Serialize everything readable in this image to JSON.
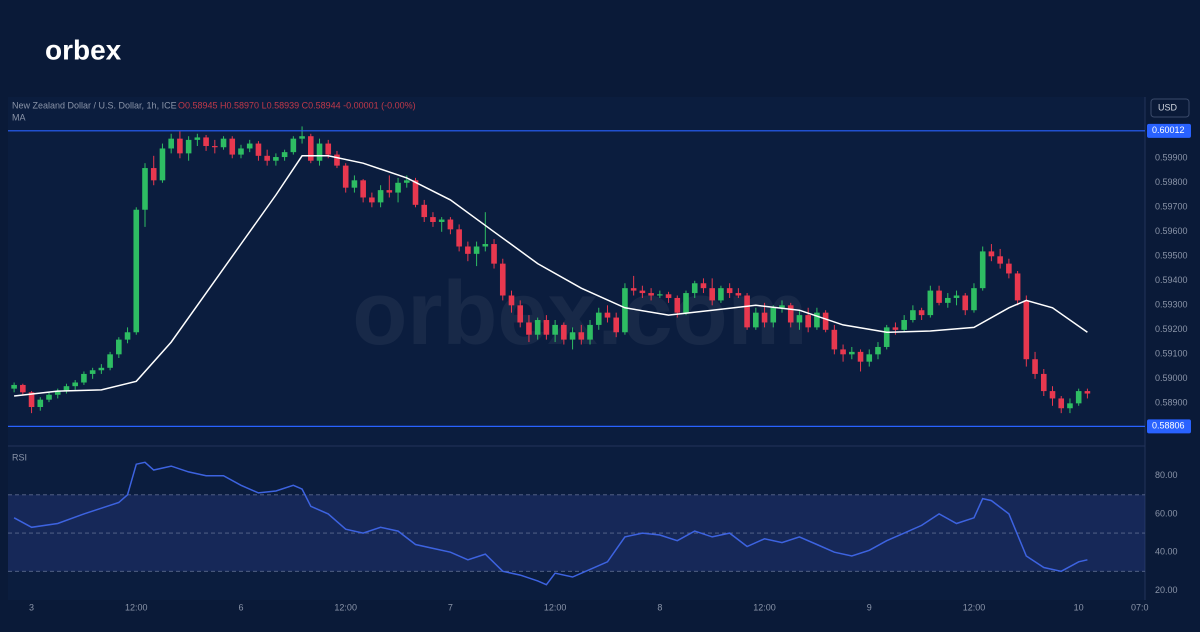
{
  "header": {
    "logo": "orbex",
    "watermark": "orbex.com"
  },
  "chart_data": [
    {
      "type": "candlestick",
      "title": "New Zealand Dollar / U.S. Dollar, 1h, ICE",
      "ohlc": "O0.58945 H0.58970 L0.58939 C0.58944 -0.00001 (-0.00%)",
      "currency": "USD",
      "up_color": "#2ebd63",
      "down_color": "#e8384f",
      "ylim": [
        0.5873,
        0.6015
      ],
      "yticks": [
        {
          "value": 0.599,
          "label": "0.59900"
        },
        {
          "value": 0.598,
          "label": "0.59800"
        },
        {
          "value": 0.597,
          "label": "0.59700"
        },
        {
          "value": 0.596,
          "label": "0.59600"
        },
        {
          "value": 0.595,
          "label": "0.59500"
        },
        {
          "value": 0.594,
          "label": "0.59400"
        },
        {
          "value": 0.593,
          "label": "0.59300"
        },
        {
          "value": 0.592,
          "label": "0.59200"
        },
        {
          "value": 0.591,
          "label": "0.59100"
        },
        {
          "value": 0.59,
          "label": "0.59000"
        },
        {
          "value": 0.589,
          "label": "0.58900"
        }
      ],
      "levels": [
        0.60012,
        0.58806
      ],
      "level_color": "#2962ff",
      "xlim": [
        -0.7,
        129.6
      ],
      "xticks": [
        {
          "value": 2,
          "label": "3"
        },
        {
          "value": 14,
          "label": "12:00"
        },
        {
          "value": 26,
          "label": "6"
        },
        {
          "value": 38,
          "label": "12:00"
        },
        {
          "value": 50,
          "label": "7"
        },
        {
          "value": 62,
          "label": "12:00"
        },
        {
          "value": 74,
          "label": "8"
        },
        {
          "value": 86,
          "label": "12:00"
        },
        {
          "value": 98,
          "label": "9"
        },
        {
          "value": 110,
          "label": "12:00"
        },
        {
          "value": 122,
          "label": "10"
        },
        {
          "value": 129,
          "label": "07:0"
        }
      ],
      "candles": [
        [
          0.5896,
          0.58985,
          0.58945,
          0.58975
        ],
        [
          0.58975,
          0.5898,
          0.58935,
          0.58945
        ],
        [
          0.58945,
          0.5895,
          0.5886,
          0.58885
        ],
        [
          0.58885,
          0.58925,
          0.5887,
          0.58915
        ],
        [
          0.58915,
          0.58945,
          0.58905,
          0.58935
        ],
        [
          0.58935,
          0.5896,
          0.5892,
          0.5895
        ],
        [
          0.5895,
          0.5898,
          0.5894,
          0.5897
        ],
        [
          0.5897,
          0.58995,
          0.58955,
          0.58985
        ],
        [
          0.58985,
          0.5903,
          0.58975,
          0.5902
        ],
        [
          0.5902,
          0.59045,
          0.59,
          0.59035
        ],
        [
          0.59035,
          0.5906,
          0.5902,
          0.59045
        ],
        [
          0.59045,
          0.5911,
          0.59035,
          0.591
        ],
        [
          0.591,
          0.5917,
          0.59085,
          0.5916
        ],
        [
          0.5916,
          0.5921,
          0.59145,
          0.5919
        ],
        [
          0.5919,
          0.597,
          0.5918,
          0.5969
        ],
        [
          0.5969,
          0.5988,
          0.5962,
          0.5986
        ],
        [
          0.5986,
          0.5991,
          0.5979,
          0.5981
        ],
        [
          0.5981,
          0.5996,
          0.598,
          0.5994
        ],
        [
          0.5994,
          0.6,
          0.5992,
          0.5998
        ],
        [
          0.5998,
          0.6001,
          0.599,
          0.5992
        ],
        [
          0.5992,
          0.5999,
          0.5989,
          0.59975
        ],
        [
          0.59975,
          0.6,
          0.5995,
          0.59985
        ],
        [
          0.59985,
          0.59995,
          0.5993,
          0.5995
        ],
        [
          0.5995,
          0.59975,
          0.5992,
          0.59945
        ],
        [
          0.59945,
          0.5999,
          0.59935,
          0.5998
        ],
        [
          0.5998,
          0.5999,
          0.599,
          0.59915
        ],
        [
          0.59915,
          0.59955,
          0.599,
          0.5994
        ],
        [
          0.5994,
          0.59975,
          0.59925,
          0.5996
        ],
        [
          0.5996,
          0.5997,
          0.5989,
          0.5991
        ],
        [
          0.5991,
          0.59935,
          0.5987,
          0.5989
        ],
        [
          0.5989,
          0.5992,
          0.5987,
          0.59905
        ],
        [
          0.59905,
          0.59935,
          0.5989,
          0.59925
        ],
        [
          0.59925,
          0.5999,
          0.59915,
          0.5998
        ],
        [
          0.5998,
          0.6003,
          0.5996,
          0.5999
        ],
        [
          0.5999,
          0.6,
          0.5988,
          0.5989
        ],
        [
          0.5989,
          0.5998,
          0.5987,
          0.5996
        ],
        [
          0.5996,
          0.59975,
          0.599,
          0.59915
        ],
        [
          0.59915,
          0.5993,
          0.5986,
          0.5987
        ],
        [
          0.5987,
          0.5988,
          0.5976,
          0.5978
        ],
        [
          0.5978,
          0.5983,
          0.5976,
          0.5981
        ],
        [
          0.5981,
          0.59815,
          0.5972,
          0.5974
        ],
        [
          0.5974,
          0.5976,
          0.597,
          0.5972
        ],
        [
          0.5972,
          0.5979,
          0.597,
          0.5977
        ],
        [
          0.5977,
          0.5983,
          0.5974,
          0.5976
        ],
        [
          0.5976,
          0.5982,
          0.5972,
          0.598
        ],
        [
          0.598,
          0.5983,
          0.5978,
          0.5981
        ],
        [
          0.5981,
          0.5982,
          0.597,
          0.5971
        ],
        [
          0.5971,
          0.5973,
          0.5964,
          0.5966
        ],
        [
          0.5966,
          0.5968,
          0.5962,
          0.5964
        ],
        [
          0.5964,
          0.5966,
          0.596,
          0.5965
        ],
        [
          0.5965,
          0.5966,
          0.5959,
          0.5961
        ],
        [
          0.5961,
          0.5963,
          0.5952,
          0.5954
        ],
        [
          0.5954,
          0.5956,
          0.5948,
          0.5951
        ],
        [
          0.5951,
          0.5956,
          0.5946,
          0.5954
        ],
        [
          0.5954,
          0.5968,
          0.5952,
          0.5955
        ],
        [
          0.5955,
          0.5957,
          0.5945,
          0.5947
        ],
        [
          0.5947,
          0.5949,
          0.5932,
          0.5934
        ],
        [
          0.5934,
          0.5936,
          0.5927,
          0.593
        ],
        [
          0.593,
          0.5932,
          0.5921,
          0.5923
        ],
        [
          0.5923,
          0.5926,
          0.5915,
          0.5918
        ],
        [
          0.5918,
          0.5925,
          0.5916,
          0.5924
        ],
        [
          0.5924,
          0.5926,
          0.5916,
          0.5918
        ],
        [
          0.5918,
          0.5924,
          0.5915,
          0.5922
        ],
        [
          0.5922,
          0.5923,
          0.5914,
          0.5916
        ],
        [
          0.5916,
          0.5921,
          0.5912,
          0.5919
        ],
        [
          0.5919,
          0.5922,
          0.5914,
          0.5916
        ],
        [
          0.5916,
          0.5924,
          0.5914,
          0.5922
        ],
        [
          0.5922,
          0.5929,
          0.592,
          0.5927
        ],
        [
          0.5927,
          0.593,
          0.5923,
          0.5925
        ],
        [
          0.5925,
          0.5927,
          0.5917,
          0.5919
        ],
        [
          0.5919,
          0.5939,
          0.5918,
          0.5937
        ],
        [
          0.5937,
          0.5942,
          0.5934,
          0.5936
        ],
        [
          0.5936,
          0.5938,
          0.5933,
          0.5935
        ],
        [
          0.5935,
          0.5937,
          0.5932,
          0.5934
        ],
        [
          0.5934,
          0.5936,
          0.5933,
          0.59345
        ],
        [
          0.59345,
          0.59355,
          0.5931,
          0.5933
        ],
        [
          0.5933,
          0.5934,
          0.5925,
          0.5927
        ],
        [
          0.5927,
          0.5936,
          0.5926,
          0.5935
        ],
        [
          0.5935,
          0.594,
          0.5933,
          0.5939
        ],
        [
          0.5939,
          0.5941,
          0.5935,
          0.5937
        ],
        [
          0.5937,
          0.5941,
          0.593,
          0.5932
        ],
        [
          0.5932,
          0.5938,
          0.5931,
          0.5937
        ],
        [
          0.5937,
          0.5939,
          0.5933,
          0.5935
        ],
        [
          0.5935,
          0.5937,
          0.5933,
          0.5934
        ],
        [
          0.5934,
          0.5935,
          0.592,
          0.5921
        ],
        [
          0.5921,
          0.5929,
          0.592,
          0.5927
        ],
        [
          0.5927,
          0.5931,
          0.5921,
          0.5923
        ],
        [
          0.5923,
          0.593,
          0.5921,
          0.5929
        ],
        [
          0.5929,
          0.5932,
          0.5927,
          0.593
        ],
        [
          0.593,
          0.5931,
          0.5921,
          0.5923
        ],
        [
          0.5923,
          0.5928,
          0.592,
          0.5926
        ],
        [
          0.5926,
          0.5929,
          0.5919,
          0.5921
        ],
        [
          0.5921,
          0.5929,
          0.592,
          0.5927
        ],
        [
          0.5927,
          0.5928,
          0.5919,
          0.592
        ],
        [
          0.592,
          0.5922,
          0.591,
          0.5912
        ],
        [
          0.5912,
          0.5914,
          0.5907,
          0.591
        ],
        [
          0.591,
          0.5913,
          0.5908,
          0.5911
        ],
        [
          0.5911,
          0.5912,
          0.5903,
          0.5907
        ],
        [
          0.5907,
          0.5912,
          0.5905,
          0.591
        ],
        [
          0.591,
          0.5915,
          0.5908,
          0.5913
        ],
        [
          0.5913,
          0.5922,
          0.5912,
          0.5921
        ],
        [
          0.5921,
          0.5923,
          0.5918,
          0.592
        ],
        [
          0.592,
          0.5926,
          0.5919,
          0.5924
        ],
        [
          0.5924,
          0.593,
          0.5923,
          0.5928
        ],
        [
          0.5928,
          0.5929,
          0.5924,
          0.5926
        ],
        [
          0.5926,
          0.5938,
          0.5925,
          0.5936
        ],
        [
          0.5936,
          0.5938,
          0.593,
          0.5931
        ],
        [
          0.5931,
          0.5935,
          0.5929,
          0.5933
        ],
        [
          0.5933,
          0.5936,
          0.593,
          0.5934
        ],
        [
          0.5934,
          0.5935,
          0.5926,
          0.5928
        ],
        [
          0.5928,
          0.5939,
          0.5927,
          0.5937
        ],
        [
          0.5937,
          0.5954,
          0.5936,
          0.5952
        ],
        [
          0.5952,
          0.5955,
          0.5948,
          0.595
        ],
        [
          0.595,
          0.5953,
          0.5945,
          0.5947
        ],
        [
          0.5947,
          0.5949,
          0.5941,
          0.5943
        ],
        [
          0.5943,
          0.5944,
          0.593,
          0.5932
        ],
        [
          0.5932,
          0.5934,
          0.5905,
          0.5908
        ],
        [
          0.5908,
          0.5911,
          0.59,
          0.5902
        ],
        [
          0.5902,
          0.5904,
          0.5893,
          0.5895
        ],
        [
          0.5895,
          0.5897,
          0.5889,
          0.5892
        ],
        [
          0.5892,
          0.5893,
          0.5886,
          0.5888
        ],
        [
          0.5888,
          0.5892,
          0.5886,
          0.589
        ],
        [
          0.589,
          0.5896,
          0.5889,
          0.5895
        ],
        [
          0.5895,
          0.5896,
          0.5892,
          0.5894
        ]
      ],
      "series": [
        {
          "name": "MA",
          "color": "#ffffff",
          "x": [
            0,
            5,
            10,
            14,
            18,
            22,
            26,
            30,
            33,
            36,
            40,
            45,
            50,
            55,
            60,
            65,
            70,
            75,
            80,
            85,
            90,
            95,
            100,
            105,
            110,
            114,
            116,
            119,
            123
          ],
          "values": [
            0.5893,
            0.5895,
            0.58955,
            0.5899,
            0.5915,
            0.5935,
            0.5955,
            0.5975,
            0.5991,
            0.5991,
            0.5988,
            0.5982,
            0.5973,
            0.596,
            0.5947,
            0.5937,
            0.5929,
            0.5926,
            0.5928,
            0.593,
            0.5928,
            0.5922,
            0.5919,
            0.59195,
            0.5921,
            0.5929,
            0.5932,
            0.5929,
            0.5919
          ]
        }
      ]
    },
    {
      "type": "line",
      "title": "RSI",
      "ylim": [
        15,
        95
      ],
      "yticks": [
        {
          "value": 80,
          "label": "80.00"
        },
        {
          "value": 60,
          "label": "60.00"
        },
        {
          "value": 40,
          "label": "40.00"
        },
        {
          "value": 20,
          "label": "20.00"
        }
      ],
      "bands": [
        70,
        50,
        30
      ],
      "series": [
        {
          "name": "RSI",
          "color": "#3d63e0",
          "x": [
            0,
            2,
            5,
            8,
            10,
            12,
            13,
            14,
            15,
            16,
            18,
            20,
            22,
            24,
            26,
            28,
            30,
            32,
            33,
            34,
            36,
            38,
            40,
            42,
            44,
            46,
            48,
            50,
            52,
            54,
            56,
            58,
            60,
            61,
            62,
            64,
            66,
            68,
            70,
            72,
            74,
            76,
            78,
            80,
            82,
            84,
            86,
            88,
            90,
            92,
            94,
            96,
            98,
            100,
            102,
            104,
            106,
            108,
            110,
            111,
            112,
            114,
            116,
            118,
            120,
            122,
            123
          ],
          "values": [
            58,
            53,
            55,
            60,
            63,
            66,
            70,
            86,
            87,
            83,
            85,
            82,
            80,
            80,
            75,
            71,
            72,
            75,
            73,
            64,
            60,
            52,
            50,
            53,
            51,
            44,
            42,
            40,
            36,
            39,
            30,
            28,
            25,
            23,
            29,
            27,
            31,
            35,
            48,
            50,
            49,
            46,
            51,
            48,
            50,
            43,
            47,
            45,
            48,
            44,
            40,
            38,
            41,
            46,
            50,
            54,
            60,
            55,
            58,
            68,
            67,
            60,
            38,
            32,
            30,
            35,
            36
          ]
        }
      ]
    }
  ]
}
